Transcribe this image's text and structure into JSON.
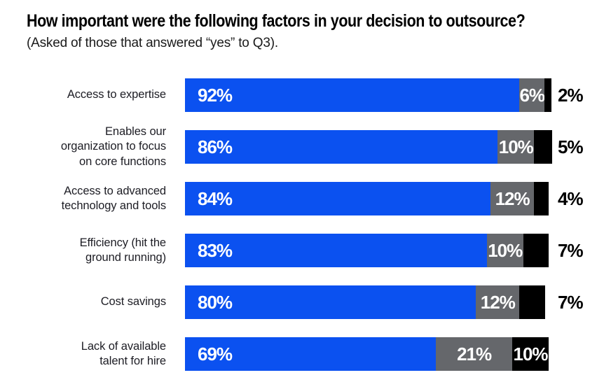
{
  "header": {
    "title": "How important were the following factors in your decision to outsource?",
    "subtitle": "(Asked of those that answered “yes” to Q3)."
  },
  "chart_data": {
    "type": "bar",
    "orientation": "horizontal-stacked",
    "title": "How important were the following factors in your decision to outsource?",
    "subtitle": "(Asked of those that answered “yes” to Q3).",
    "categories": [
      "Access to expertise",
      "Enables our organization to focus on core functions",
      "Access to advanced technology and tools",
      "Efficiency (hit the ground running)",
      "Cost savings",
      "Lack of available talent for hire"
    ],
    "category_lines": [
      [
        "Access to expertise"
      ],
      [
        "Enables our",
        "organization to focus",
        "on core functions"
      ],
      [
        "Access to advanced",
        "technology and tools"
      ],
      [
        "Efficiency (hit the",
        "ground running)"
      ],
      [
        "Cost savings"
      ],
      [
        "Lack of available",
        "talent for hire"
      ]
    ],
    "series": [
      {
        "name": "blue",
        "color": "#0b51f0",
        "values": [
          92,
          86,
          84,
          83,
          80,
          69
        ]
      },
      {
        "name": "gray",
        "color": "#65676b",
        "values": [
          6,
          10,
          12,
          10,
          12,
          21
        ]
      },
      {
        "name": "black",
        "color": "#000000",
        "values": [
          2,
          5,
          4,
          7,
          7,
          10
        ]
      }
    ],
    "value_suffix": "%",
    "black_label_placement": [
      "outside",
      "outside",
      "outside",
      "outside",
      "outside",
      "inside"
    ],
    "xlim": [
      0,
      100
    ],
    "grid": false,
    "legend": false
  },
  "colors": {
    "primary": "#0b51f0",
    "secondary": "#65676b",
    "tertiary": "#000000",
    "background": "#ffffff",
    "text": "#1d1d24"
  }
}
